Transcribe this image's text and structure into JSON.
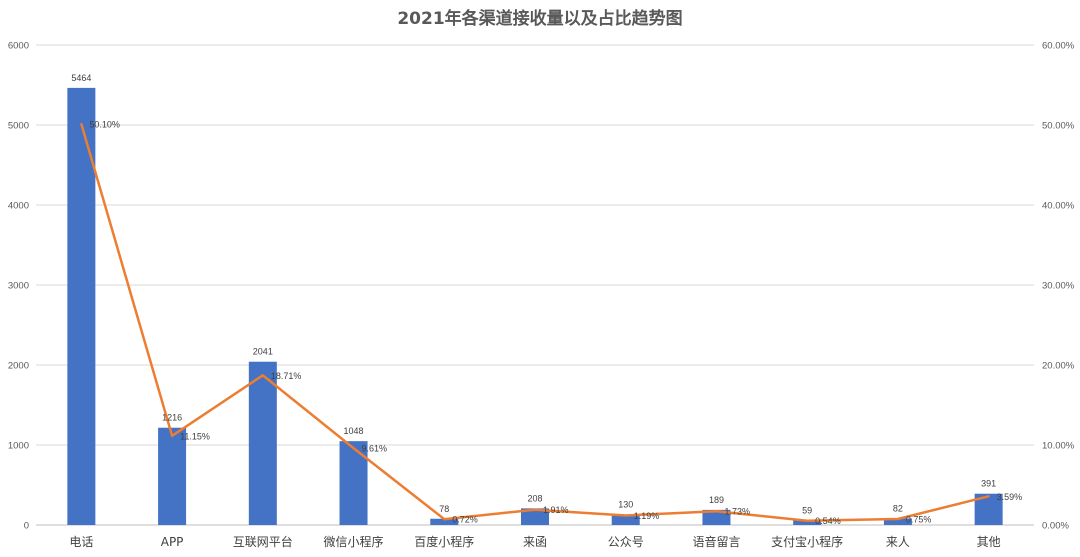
{
  "chart_data": {
    "type": "bar",
    "title": "2021年各渠道接收量以及占比趋势图",
    "categories": [
      "电话",
      "APP",
      "互联网平台",
      "微信小程序",
      "百度小程序",
      "来函",
      "公众号",
      "语音留言",
      "支付宝小程序",
      "来人",
      "其他"
    ],
    "series": [
      {
        "type": "bar",
        "axis": "left",
        "color": "#4472C4",
        "values": [
          5464,
          1216,
          2041,
          1048,
          78,
          208,
          130,
          189,
          59,
          82,
          391
        ],
        "labels": [
          "5464",
          "1216",
          "2041",
          "1048",
          "78",
          "208",
          "130",
          "189",
          "59",
          "82",
          "391"
        ]
      },
      {
        "type": "line",
        "axis": "right",
        "color": "#ED7D31",
        "values": [
          50.1,
          11.15,
          18.71,
          9.61,
          0.72,
          1.91,
          1.19,
          1.73,
          0.54,
          0.75,
          3.59
        ],
        "labels": [
          "50.10%",
          "11.15%",
          "18.71%",
          "9.61%",
          "0.72%",
          "1.91%",
          "1.19%",
          "1.73%",
          "0.54%",
          "0.75%",
          "3.59%"
        ]
      }
    ],
    "ylim": [
      0,
      6000
    ],
    "y_ticks": [
      "0",
      "1000",
      "2000",
      "3000",
      "4000",
      "5000",
      "6000"
    ],
    "y2lim": [
      0,
      60
    ],
    "y2_ticks": [
      "0.00%",
      "10.00%",
      "20.00%",
      "30.00%",
      "40.00%",
      "50.00%",
      "60.00%"
    ],
    "grid": true,
    "legend": "none"
  }
}
